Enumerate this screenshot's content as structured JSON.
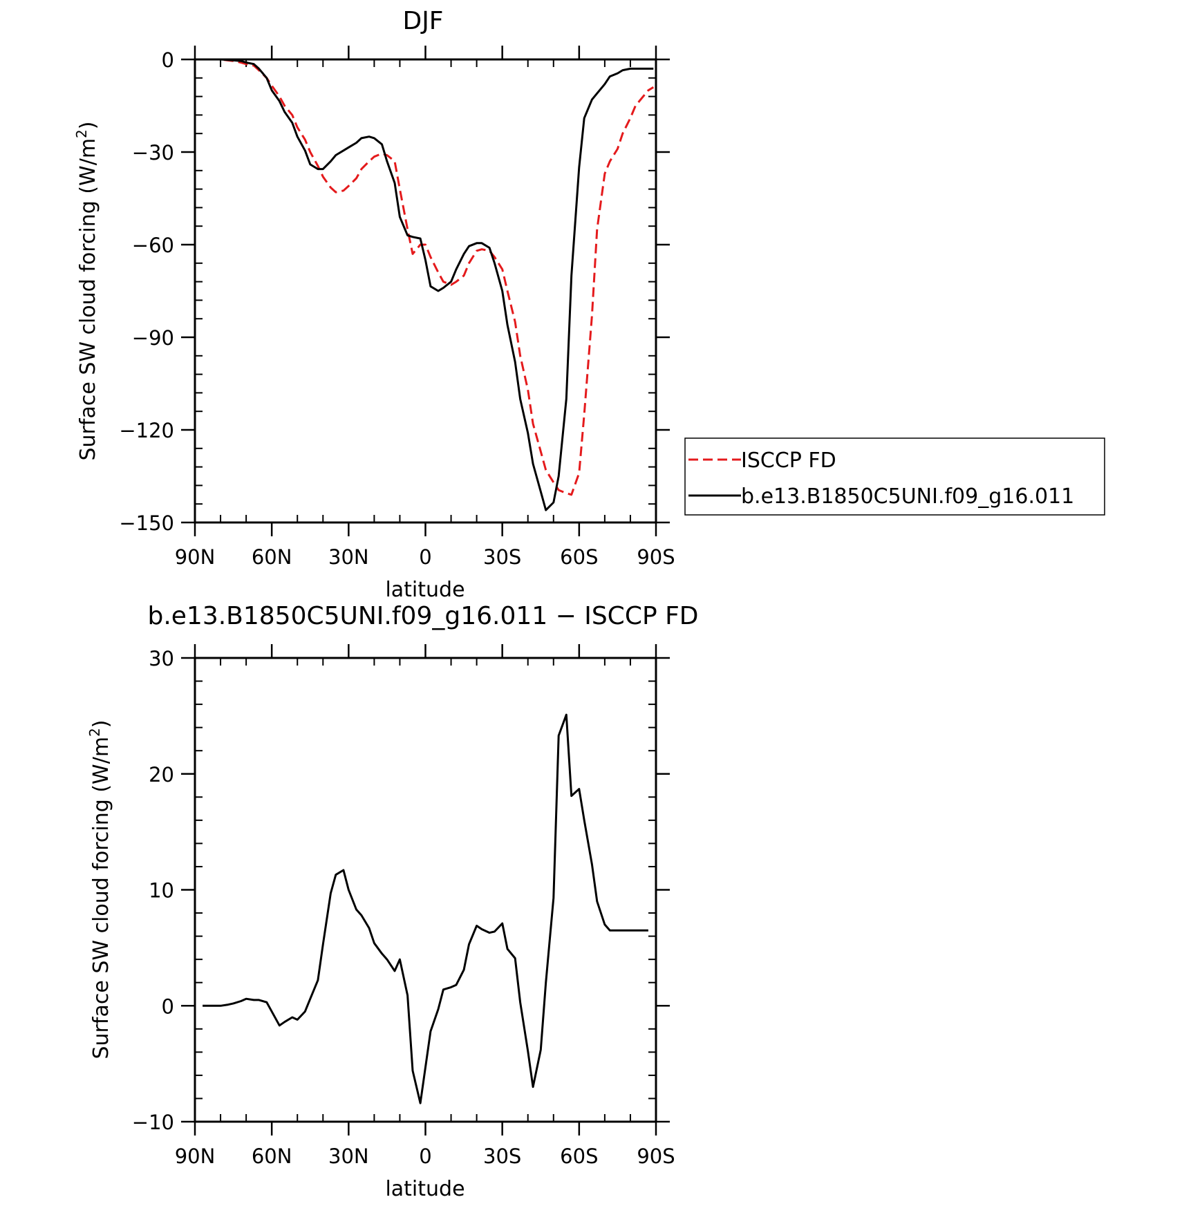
{
  "chart_data": [
    {
      "type": "line",
      "title": "DJF",
      "xlabel": "latitude",
      "ylabel": "Surface SW cloud forcing (W/m",
      "ylabel_sup": "2",
      "ylabel_close": ")",
      "xlim": [
        90,
        -90
      ],
      "ylim": [
        -150,
        0
      ],
      "yticks": [
        0,
        -30,
        -60,
        -90,
        -120,
        -150
      ],
      "ytick_labels": [
        "0",
        "−30",
        "−60",
        "−90",
        "−120",
        "−150"
      ],
      "xticks": [
        90,
        60,
        30,
        0,
        -30,
        -60,
        -90
      ],
      "xtick_labels": [
        "90N",
        "60N",
        "30N",
        "0",
        "30S",
        "60S",
        "90S"
      ],
      "legend_position": "right",
      "series": [
        {
          "name": "ISCCP FD",
          "color": "#e41a1c",
          "dash": "dashed",
          "x": [
            90,
            85,
            80,
            75,
            72,
            70,
            67,
            65,
            62,
            60,
            57,
            55,
            52,
            50,
            47,
            45,
            42,
            40,
            37,
            35,
            32,
            30,
            27,
            25,
            22,
            20,
            17,
            15,
            12,
            10,
            7,
            5,
            2,
            0,
            -2,
            -5,
            -7,
            -10,
            -12,
            -15,
            -17,
            -20,
            -22,
            -25,
            -27,
            -30,
            -32,
            -35,
            -37,
            -40,
            -42,
            -45,
            -47,
            -50,
            -52,
            -55,
            -57,
            -60,
            -62,
            -65,
            -67,
            -70,
            -72,
            -75,
            -77,
            -80,
            -82,
            -85,
            -87,
            -89
          ],
          "y": [
            0,
            0,
            0,
            -0.5,
            -1,
            -1.5,
            -2,
            -3.5,
            -6,
            -8.5,
            -12,
            -15,
            -18,
            -22,
            -26,
            -30,
            -34.5,
            -38,
            -41.5,
            -43,
            -42.5,
            -41,
            -38.5,
            -35.5,
            -33,
            -31.5,
            -30.5,
            -31,
            -33,
            -42,
            -55,
            -63,
            -60,
            -60,
            -64,
            -69,
            -72,
            -73,
            -72,
            -70,
            -66,
            -62,
            -61.5,
            -62,
            -64,
            -68,
            -75,
            -85,
            -96,
            -107,
            -118,
            -127,
            -133,
            -137,
            -139.5,
            -140.5,
            -141,
            -134,
            -115,
            -83,
            -55,
            -37,
            -33,
            -29,
            -24,
            -19,
            -15,
            -12,
            -10,
            -9
          ]
        },
        {
          "name": "b.e13.B1850C5UNI.f09_g16.011",
          "color": "#000000",
          "dash": "solid",
          "x": [
            90,
            85,
            80,
            75,
            72,
            70,
            67,
            65,
            62,
            60,
            57,
            55,
            52,
            50,
            47,
            45,
            42,
            40,
            37,
            35,
            32,
            30,
            27,
            25,
            22,
            20,
            17,
            15,
            12,
            10,
            7,
            5,
            2,
            0,
            -2,
            -5,
            -7,
            -10,
            -12,
            -15,
            -17,
            -20,
            -22,
            -25,
            -27,
            -30,
            -32,
            -35,
            -37,
            -40,
            -42,
            -45,
            -47,
            -50,
            -52,
            -55,
            -57,
            -60,
            -62,
            -65,
            -67,
            -70,
            -72,
            -75,
            -77,
            -80,
            -82,
            -85,
            -87,
            -89
          ],
          "y": [
            0,
            0,
            0,
            -0.3,
            -0.5,
            -1,
            -1.5,
            -3,
            -6,
            -10,
            -13.5,
            -17,
            -20.5,
            -25,
            -29.5,
            -34,
            -35.5,
            -35.5,
            -33,
            -31,
            -29.5,
            -28.5,
            -27,
            -25.5,
            -25,
            -25.5,
            -27.5,
            -33,
            -40,
            -51,
            -57,
            -57.5,
            -58,
            -65,
            -73.5,
            -75,
            -74,
            -72,
            -68,
            -63,
            -60.5,
            -59.5,
            -59.5,
            -61,
            -66,
            -75,
            -86,
            -98,
            -110,
            -121,
            -131,
            -140,
            -146,
            -143.5,
            -135,
            -110,
            -70,
            -35,
            -19,
            -13,
            -11,
            -8,
            -5.5,
            -4.5,
            -3.5,
            -3,
            -3,
            -3,
            -3,
            -3
          ]
        }
      ]
    },
    {
      "type": "line",
      "title": "b.e13.B1850C5UNI.f09_g16.011 − ISCCP FD",
      "xlabel": "latitude",
      "ylabel": "Surface SW cloud forcing (W/m",
      "ylabel_sup": "2",
      "ylabel_close": ")",
      "xlim": [
        90,
        -90
      ],
      "ylim": [
        -10,
        30
      ],
      "yticks": [
        30,
        20,
        10,
        0,
        -10
      ],
      "ytick_labels": [
        "30",
        "20",
        "10",
        "0",
        "−10"
      ],
      "xticks": [
        90,
        60,
        30,
        0,
        -30,
        -60,
        -90
      ],
      "xtick_labels": [
        "90N",
        "60N",
        "30N",
        "0",
        "30S",
        "60S",
        "90S"
      ],
      "series": [
        {
          "color": "#000000",
          "dash": "solid",
          "x": [
            87,
            85,
            82,
            80,
            77,
            75,
            72,
            70,
            67,
            65,
            62,
            57,
            55,
            52,
            50,
            47,
            45,
            42,
            40,
            37,
            35,
            32,
            30,
            27,
            25,
            22,
            20,
            17,
            15,
            12,
            10,
            7,
            5,
            2,
            0,
            -2,
            -5,
            -7,
            -10,
            -12,
            -15,
            -17,
            -20,
            -22,
            -25,
            -27,
            -30,
            -32,
            -35,
            -37,
            -40,
            -42,
            -45,
            -47,
            -50,
            -52,
            -55,
            -57,
            -60,
            -62,
            -65,
            -67,
            -70,
            -72,
            -75,
            -77,
            -80,
            -82,
            -85,
            -87
          ],
          "y": [
            0,
            0,
            0,
            0,
            0.1,
            0.2,
            0.4,
            0.6,
            0.5,
            0.5,
            0.3,
            -1.7,
            -1.4,
            -1.0,
            -1.2,
            -0.5,
            0.6,
            2.2,
            5.3,
            9.7,
            11.3,
            11.7,
            10.0,
            8.3,
            7.8,
            6.7,
            5.4,
            4.5,
            4.0,
            3.0,
            4.0,
            0.9,
            -5.6,
            -8.4,
            -5.3,
            -2.2,
            -0.3,
            1.4,
            1.6,
            1.8,
            3.1,
            5.3,
            6.9,
            6.6,
            6.3,
            6.4,
            7.1,
            4.9,
            4.1,
            0.3,
            -3.9,
            -7.0,
            -3.8,
            2.0,
            9.3,
            23.3,
            25.1,
            18.1,
            18.7,
            16.0,
            12.2,
            9.0,
            7.0,
            6.5,
            6.5,
            6.5,
            6.5,
            6.5,
            6.5,
            6.5
          ]
        }
      ]
    }
  ]
}
